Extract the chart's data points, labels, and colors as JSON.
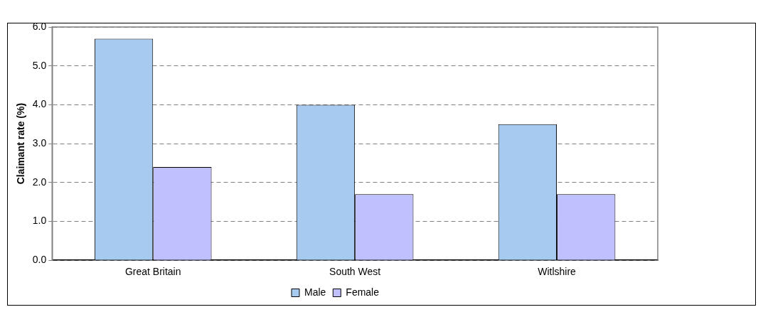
{
  "chart_data": {
    "type": "bar",
    "categories": [
      "Great Britain",
      "South West",
      "Witlshire"
    ],
    "ylabel": "Claimant rate (%)",
    "series": [
      {
        "name": "Male",
        "color": "#a6caf0",
        "values": [
          5.7,
          4.0,
          3.5
        ]
      },
      {
        "name": "Female",
        "color": "#c0c0ff",
        "values": [
          2.4,
          1.7,
          1.7
        ]
      }
    ],
    "ylim": [
      0,
      6
    ],
    "yticks": [
      {
        "value": 0,
        "label": "0.0"
      },
      {
        "value": 1,
        "label": "1.0"
      },
      {
        "value": 2,
        "label": "2.0"
      },
      {
        "value": 3,
        "label": "3.0"
      },
      {
        "value": 4,
        "label": "4.0"
      },
      {
        "value": 5,
        "label": "5.0"
      },
      {
        "value": 6,
        "label": "6.0"
      }
    ],
    "grid": "y",
    "legend": "bottom"
  }
}
